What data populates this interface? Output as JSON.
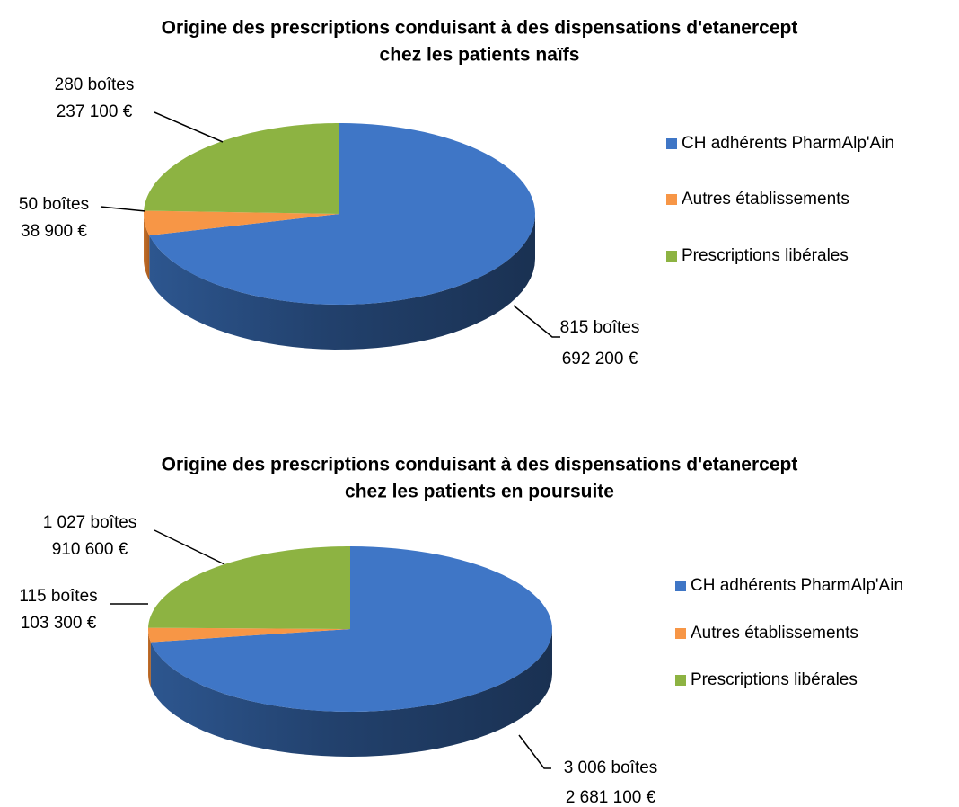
{
  "chart_data": [
    {
      "type": "pie3d",
      "title": [
        "Origine des prescriptions conduisant à des dispensations d'etanercept",
        "chez les patients naïfs"
      ],
      "categories": [
        "CH adhérents PharmAlp'Ain",
        "Autres établissements",
        "Prescriptions libérales"
      ],
      "colors": [
        "#3f76c6",
        "#f79646",
        "#8db342"
      ],
      "values": [
        815,
        50,
        280
      ],
      "value_labels": [
        "815 boîtes",
        "50 boîtes",
        "280 boîtes"
      ],
      "amount_labels": [
        "692 200 €",
        "38 900 €",
        "237 100 €"
      ],
      "legend": "right"
    },
    {
      "type": "pie3d",
      "title": [
        "Origine des prescriptions conduisant à des dispensations d'etanercept",
        "chez les patients en poursuite"
      ],
      "categories": [
        "CH adhérents PharmAlp'Ain",
        "Autres établissements",
        "Prescriptions libérales"
      ],
      "colors": [
        "#3f76c6",
        "#f79646",
        "#8db342"
      ],
      "values": [
        3006,
        115,
        1027
      ],
      "value_labels": [
        "3 006 boîtes",
        "115 boîtes",
        "1 027 boîtes"
      ],
      "amount_labels": [
        "2 681 100 €",
        "103 300 €",
        "910 600 €"
      ],
      "legend": "right"
    }
  ]
}
